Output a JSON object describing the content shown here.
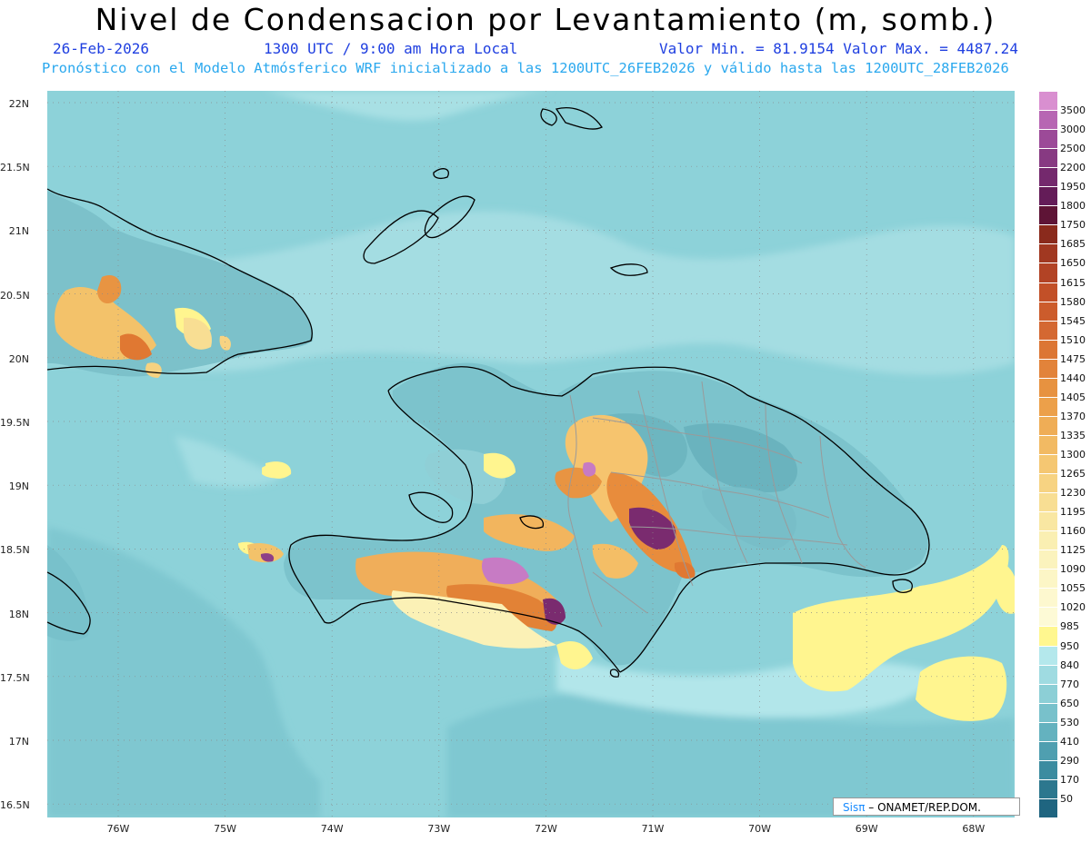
{
  "title": "Nivel de Condensacion por Levantamiento (m, somb.)",
  "date": "26-Feb-2026",
  "time": "1300 UTC / 9:00 am Hora Local",
  "min_max": "Valor Min. = 81.9154  Valor Max. = 4487.24",
  "model_note": "Pronóstico con el Modelo Atmósferico WRF inicializado a las 1200UTC_26FEB2026 y válido hasta las  1200UTC_28FEB2026",
  "credit": {
    "sis": "Sisπ",
    "org": "– ONAMET/REP.DOM."
  },
  "lat_labels": [
    "22N",
    "21.5N",
    "21N",
    "20.5N",
    "20N",
    "19.5N",
    "19N",
    "18.5N",
    "18N",
    "17.5N",
    "17N",
    "16.5N"
  ],
  "lon_labels": [
    "76W",
    "75W",
    "74W",
    "73W",
    "72W",
    "71W",
    "70W",
    "69W",
    "68W"
  ],
  "colorbar": {
    "labels": [
      "3500",
      "3000",
      "2500",
      "2200",
      "1950",
      "1800",
      "1750",
      "1685",
      "1650",
      "1615",
      "1580",
      "1545",
      "1510",
      "1475",
      "1440",
      "1405",
      "1370",
      "1335",
      "1300",
      "1265",
      "1230",
      "1195",
      "1160",
      "1125",
      "1090",
      "1055",
      "1020",
      "985",
      "950",
      "840",
      "770",
      "650",
      "530",
      "410",
      "290",
      "170",
      "50"
    ],
    "colors": [
      "#d98fd0",
      "#b766b3",
      "#9c4a98",
      "#873a82",
      "#74296d",
      "#641c58",
      "#5e1436",
      "#8a2a1c",
      "#a13821",
      "#b24325",
      "#c25028",
      "#cc5c2c",
      "#d46832",
      "#dc7634",
      "#e2833a",
      "#e79240",
      "#eca04a",
      "#efad56",
      "#f2ba63",
      "#f5c772",
      "#f7d382",
      "#f8de93",
      "#f9e7a2",
      "#faefb2",
      "#fbf3bd",
      "#fcf6c6",
      "#fdf8cf",
      "#fdfad6",
      "#fff78f",
      "#b4e8ec",
      "#9fdbe1",
      "#8ccfd6",
      "#78c1cb",
      "#64b2bf",
      "#4f9fb0",
      "#3c8ca0",
      "#2c778e",
      "#1f6580"
    ]
  }
}
